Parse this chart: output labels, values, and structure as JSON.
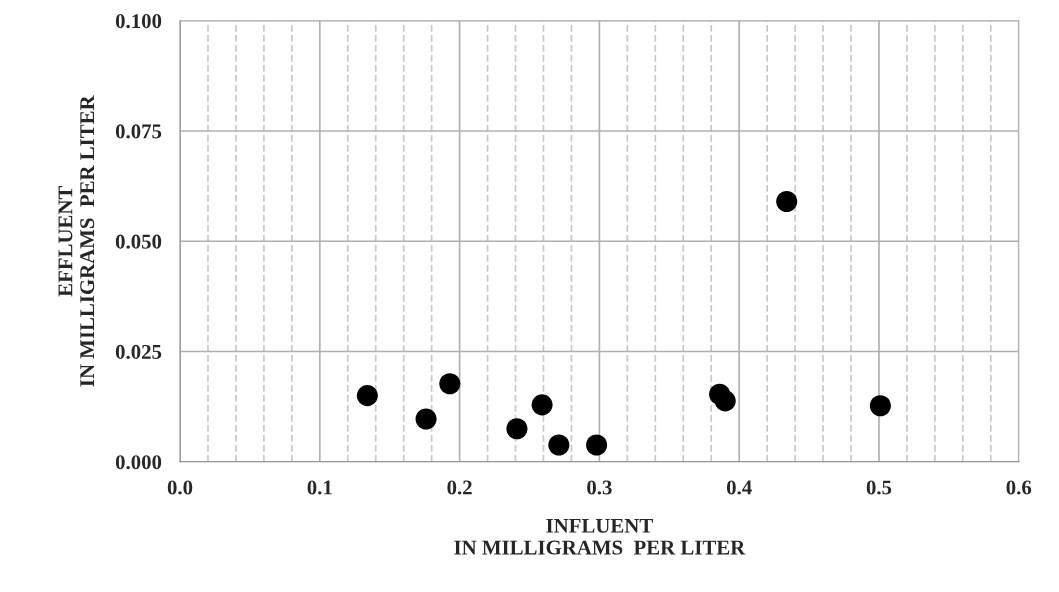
{
  "chart_data": {
    "type": "scatter",
    "xlabel": "INFLUENT\nIN MILLIGRAMS  PER LITER",
    "ylabel": "EFFLUENT\nIN MILLIGRAMS  PER LITER",
    "x": [
      0.134,
      0.176,
      0.193,
      0.241,
      0.259,
      0.271,
      0.298,
      0.386,
      0.39,
      0.434,
      0.501
    ],
    "series": [
      {
        "color": "#000000",
        "values": [
          0.015,
          0.0097,
          0.0177,
          0.0075,
          0.0129,
          0.0038,
          0.0038,
          0.0153,
          0.0138,
          0.059,
          0.0127
        ]
      }
    ],
    "marker": "circle",
    "xlim": [
      0,
      0.6
    ],
    "ylim": [
      0,
      0.1
    ],
    "xticks": [
      {
        "value": 0,
        "label": "0.0"
      },
      {
        "value": 0.02,
        "label": null
      },
      {
        "value": 0.04,
        "label": null
      },
      {
        "value": 0.06,
        "label": null
      },
      {
        "value": 0.08,
        "label": null
      },
      {
        "value": 0.1,
        "label": "0.1"
      },
      {
        "value": 0.12,
        "label": null
      },
      {
        "value": 0.14,
        "label": null
      },
      {
        "value": 0.16,
        "label": null
      },
      {
        "value": 0.18,
        "label": null
      },
      {
        "value": 0.2,
        "label": "0.2"
      },
      {
        "value": 0.22,
        "label": null
      },
      {
        "value": 0.24,
        "label": null
      },
      {
        "value": 0.26,
        "label": null
      },
      {
        "value": 0.28,
        "label": null
      },
      {
        "value": 0.3,
        "label": "0.3"
      },
      {
        "value": 0.32,
        "label": null
      },
      {
        "value": 0.34,
        "label": null
      },
      {
        "value": 0.36,
        "label": null
      },
      {
        "value": 0.38,
        "label": null
      },
      {
        "value": 0.4,
        "label": "0.4"
      },
      {
        "value": 0.42,
        "label": null
      },
      {
        "value": 0.44,
        "label": null
      },
      {
        "value": 0.46,
        "label": null
      },
      {
        "value": 0.48,
        "label": null
      },
      {
        "value": 0.5,
        "label": "0.5"
      },
      {
        "value": 0.52,
        "label": null
      },
      {
        "value": 0.54,
        "label": null
      },
      {
        "value": 0.56,
        "label": null
      },
      {
        "value": 0.58,
        "label": null
      },
      {
        "value": 0.6,
        "label": "0.6"
      }
    ],
    "yticks": [
      {
        "value": 0,
        "label": "0.000"
      },
      {
        "value": 0.025,
        "label": "0.025"
      },
      {
        "value": 0.05,
        "label": "0.050"
      },
      {
        "value": 0.075,
        "label": "0.075"
      },
      {
        "value": 0.1,
        "label": "0.100"
      }
    ],
    "grid": true
  }
}
